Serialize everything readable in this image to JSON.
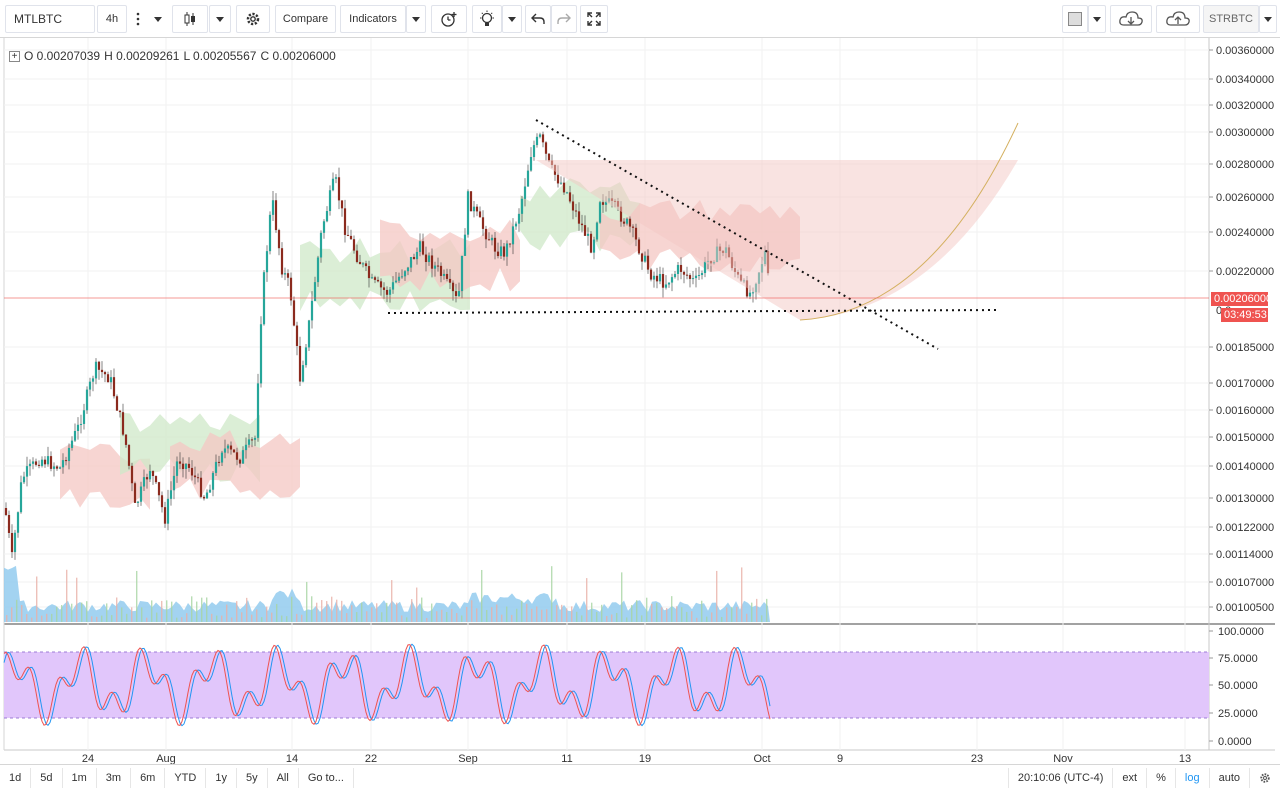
{
  "toolbar": {
    "symbol": "MTLBTC",
    "interval": "4h",
    "compare_label": "Compare",
    "indicators_label": "Indicators",
    "account_label": "STRBTC"
  },
  "legend": {
    "open": "O 0.00207039",
    "high": "H 0.00209261",
    "low": "L 0.00205567",
    "close": "C 0.00206000"
  },
  "price_axis": {
    "ticks": [
      "0.00360000",
      "0.00340000",
      "0.00320000",
      "0.00300000",
      "0.00280000",
      "0.00260000",
      "0.00240000",
      "0.00220000",
      "0.00185000",
      "0.00170000",
      "0.00160000",
      "0.00150000",
      "0.00140000",
      "0.00130000",
      "0.00122000",
      "0.00114000",
      "0.00107000",
      "0.00100500"
    ],
    "last_price": "0.00206000",
    "countdown": "03:49:53",
    "hidden_label": "0.0"
  },
  "rsi_axis": {
    "ticks": [
      "100.0000",
      "75.0000",
      "50.0000",
      "25.0000",
      "0.0000"
    ]
  },
  "time_axis": {
    "labels": [
      "24",
      "Aug",
      "14",
      "22",
      "Sep",
      "11",
      "19",
      "Oct",
      "9",
      "23",
      "Nov",
      "13"
    ]
  },
  "bottom_bar": {
    "ranges": [
      "1d",
      "5d",
      "1m",
      "3m",
      "6m",
      "YTD",
      "1y",
      "5y",
      "All"
    ],
    "goto_label": "Go to...",
    "clock": "20:10:06 (UTC-4)",
    "ext_label": "ext",
    "percent_label": "%",
    "log_label": "log",
    "auto_label": "auto"
  },
  "colors": {
    "up": "#26a69a",
    "down": "#8b2a1e",
    "cloud_green": "#cfe8c8",
    "cloud_red": "#f4c7c3",
    "rsi_band": "#e1c6fb",
    "volume": "#8cc8ee",
    "price_line": "#ef5350"
  }
}
